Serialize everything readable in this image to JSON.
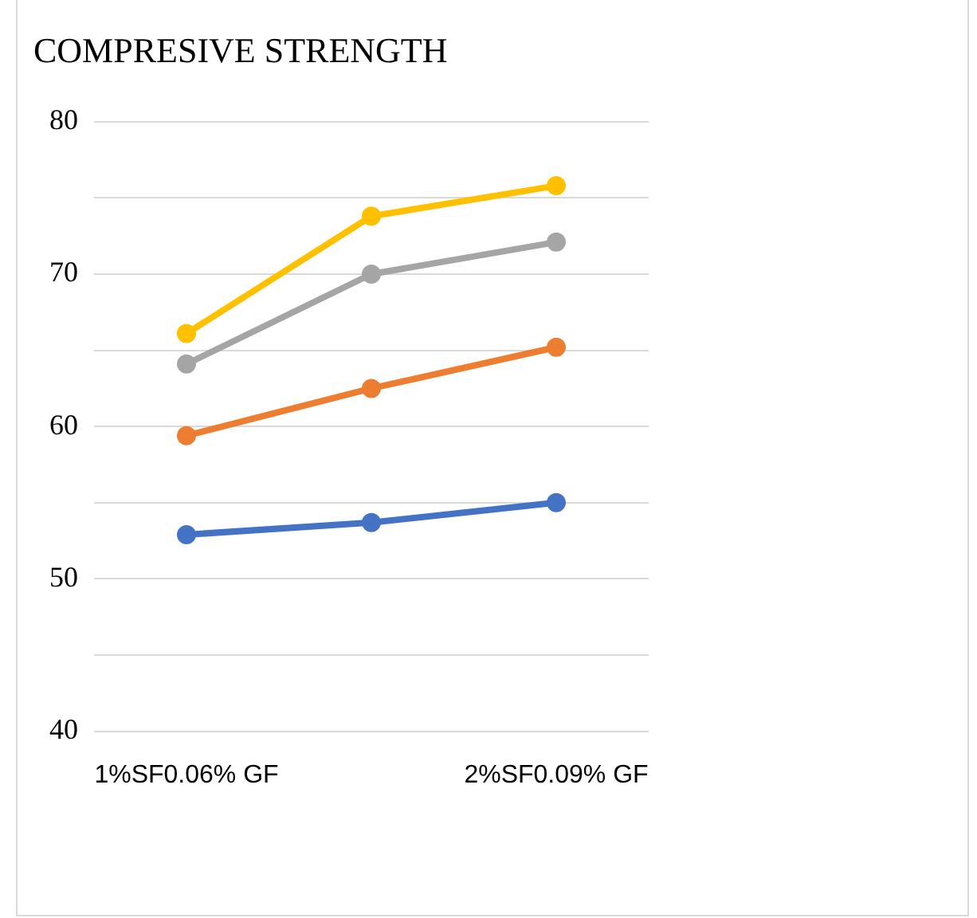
{
  "chart_data": {
    "type": "line",
    "title": "COMPRESIVE STRENGTH",
    "categories": [
      "1%SF0.06% GF",
      null,
      "2%SF0.09% GF"
    ],
    "series": [
      {
        "color": "#4472c4",
        "values": [
          52.9,
          53.7,
          55.0
        ]
      },
      {
        "color": "#ed7d31",
        "values": [
          59.4,
          62.5,
          65.2
        ]
      },
      {
        "color": "#a5a5a5",
        "values": [
          64.1,
          70.0,
          72.1
        ]
      },
      {
        "color": "#ffc000",
        "values": [
          66.1,
          73.8,
          75.8
        ]
      }
    ],
    "ylim": [
      40,
      80
    ],
    "yticks": [
      40,
      {
        "value": 45,
        "label": null
      },
      50,
      {
        "value": 55,
        "label": null
      },
      60,
      {
        "value": 65,
        "label": null
      },
      70,
      {
        "value": 75,
        "label": null
      },
      80
    ],
    "grid": "y",
    "legend": false,
    "marker": "circle",
    "line_style": "solid"
  }
}
